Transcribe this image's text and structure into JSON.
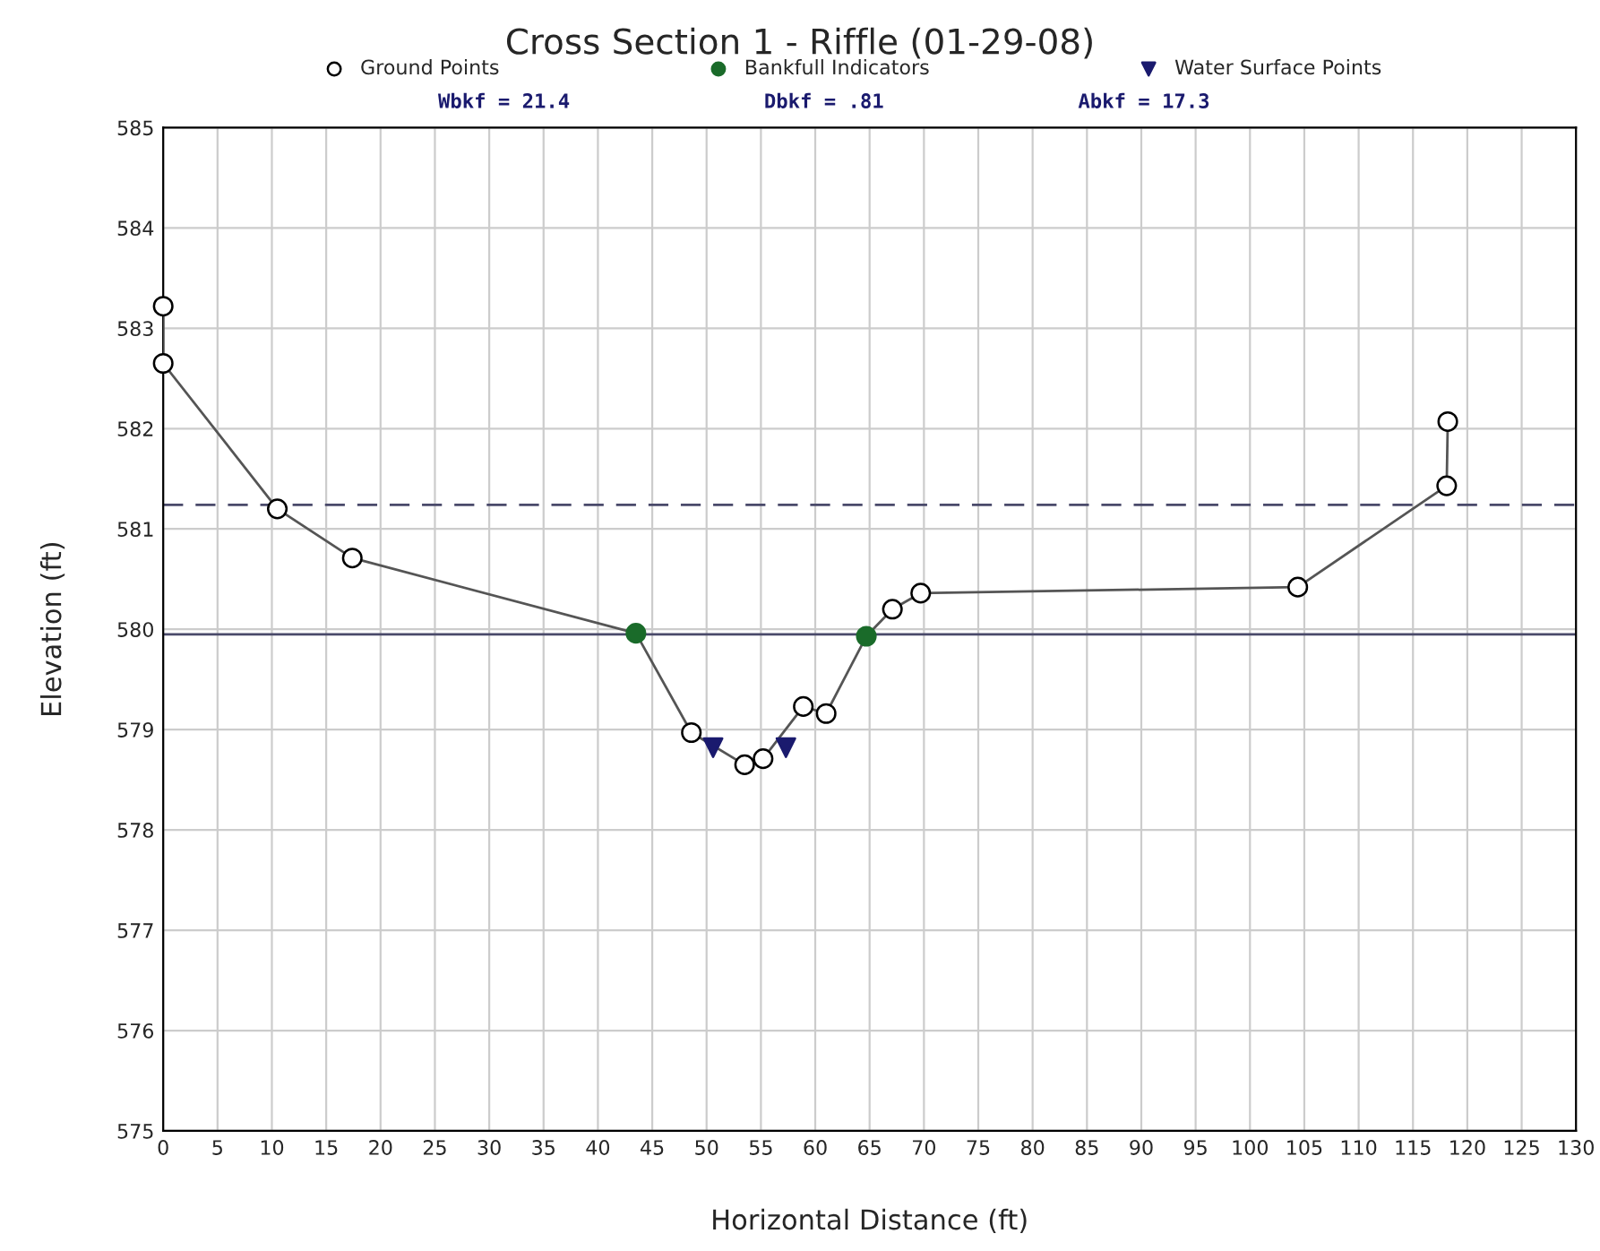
{
  "chart_data": {
    "type": "scatter",
    "title": "Cross Section 1 - Riffle (01-29-08)",
    "xlabel": "Horizontal Distance (ft)",
    "ylabel": "Elevation (ft)",
    "annotations": [
      "Wbkf = 21.4",
      "Dbkf = .81",
      "Abkf = 17.3"
    ],
    "series": [
      {
        "type": "line",
        "color": "#555555",
        "marker": "none",
        "line_style": "solid",
        "x": [
          0,
          0,
          10.5,
          17.4,
          43.5,
          48.6,
          53.5,
          55.2,
          58.9,
          61.0,
          64.7,
          67.1,
          69.7,
          104.4,
          118.1,
          118.2
        ],
        "values": [
          583.22,
          582.65,
          581.2,
          580.71,
          579.96,
          578.97,
          578.65,
          578.71,
          579.23,
          579.16,
          579.93,
          580.2,
          580.36,
          580.42,
          581.43,
          582.07
        ]
      },
      {
        "name": "Ground Points",
        "color": "#ffffff",
        "marker": "circle",
        "x": [
          0,
          0,
          10.5,
          17.4,
          48.6,
          53.5,
          55.2,
          58.9,
          61.0,
          67.1,
          69.7,
          104.4,
          118.1,
          118.2
        ],
        "values": [
          583.22,
          582.65,
          581.2,
          580.71,
          578.97,
          578.65,
          578.71,
          579.23,
          579.16,
          580.2,
          580.36,
          580.42,
          581.43,
          582.07
        ]
      },
      {
        "name": "Bankfull Indicators",
        "color": "#1a6b2a",
        "marker": "circle",
        "x": [
          43.5,
          64.7
        ],
        "values": [
          579.96,
          579.93
        ]
      },
      {
        "name": "Water Surface Points",
        "color": "#1a1a6e",
        "marker": "triangle",
        "x": [
          50.6,
          57.3
        ],
        "values": [
          578.82,
          578.82
        ]
      }
    ],
    "ref_lines": [
      {
        "axis": "y",
        "value": 581.24,
        "color": "#4a4a6a",
        "line_style": "dashed"
      },
      {
        "axis": "y",
        "value": 579.95,
        "color": "#4a4a6a",
        "line_style": "solid"
      }
    ],
    "xlim": [
      0,
      130
    ],
    "xticks": [
      0,
      5,
      10,
      15,
      20,
      25,
      30,
      35,
      40,
      45,
      50,
      55,
      60,
      65,
      70,
      75,
      80,
      85,
      90,
      95,
      100,
      105,
      110,
      115,
      120,
      125,
      130
    ],
    "ylim": [
      575,
      585
    ],
    "yticks": [
      575,
      576,
      577,
      578,
      579,
      580,
      581,
      582,
      583,
      584,
      585
    ],
    "grid": true,
    "legend": "top"
  }
}
